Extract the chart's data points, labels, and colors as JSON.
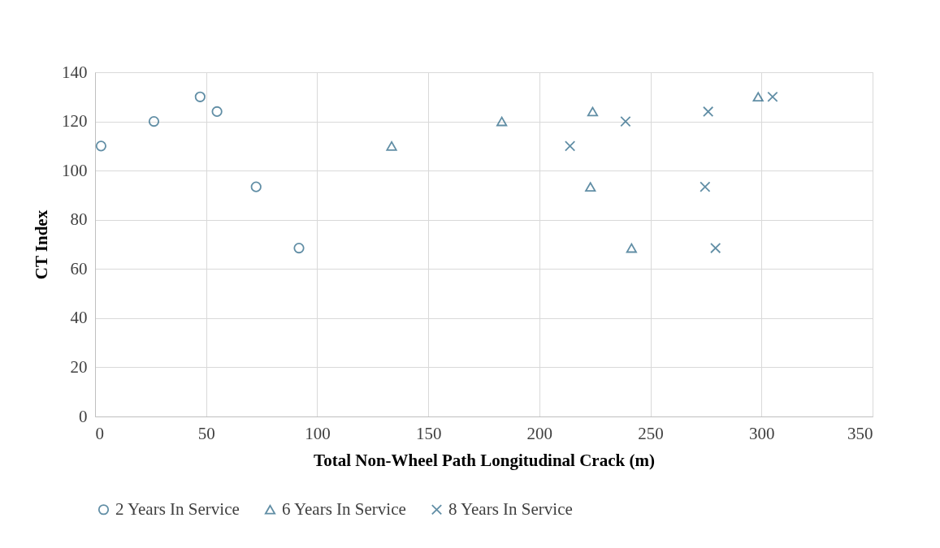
{
  "chart_data": {
    "type": "scatter",
    "xlabel": "Total Non-Wheel Path Longitudinal Crack (m)",
    "ylabel": "CT Index",
    "xlim": [
      0,
      350
    ],
    "xticks": [
      0,
      50,
      100,
      150,
      200,
      250,
      300,
      350
    ],
    "ylim": [
      0,
      140
    ],
    "yticks": [
      0,
      20,
      40,
      60,
      80,
      100,
      120,
      140
    ],
    "grid": true,
    "legend": "bottom",
    "series": [
      {
        "name": "2 Years In Service",
        "color": "#1f5f80",
        "marker": "circle",
        "x": [
          2.7,
          26.5,
          47.3,
          54.9,
          72.5,
          91.8
        ],
        "values": [
          110,
          120,
          130,
          124,
          93.4,
          68.5
        ]
      },
      {
        "name": "6 Years In Service",
        "color": "#1f5f80",
        "marker": "triangle",
        "x": [
          133.5,
          183.1,
          224,
          223,
          241.5,
          298.5
        ],
        "values": [
          110,
          120,
          124,
          93.4,
          68.5,
          130
        ]
      },
      {
        "name": "8 Years In Service",
        "color": "#1f5f80",
        "marker": "cross",
        "x": [
          213.8,
          238.8,
          276,
          274.6,
          279.3,
          305
        ],
        "values": [
          110,
          120,
          124,
          93.4,
          68.5,
          130
        ]
      }
    ]
  }
}
